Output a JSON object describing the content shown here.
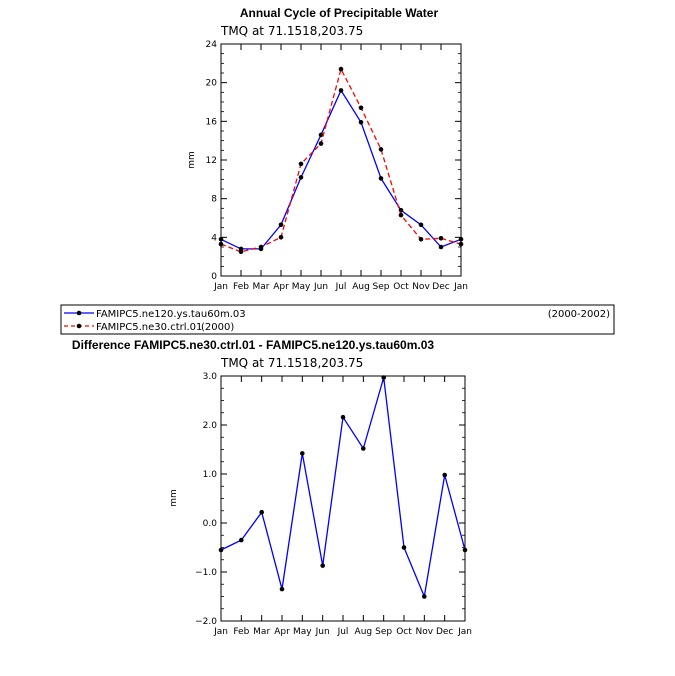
{
  "chart_data": [
    {
      "type": "line",
      "title": "Annual Cycle of Precipitable Water",
      "subtitle": "TMQ at 71.1518,203.75",
      "ylabel": "mm",
      "ylim": [
        0,
        24
      ],
      "yticks": [
        "0",
        "4",
        "8",
        "12",
        "16",
        "20",
        "24"
      ],
      "categories": [
        "Jan",
        "Feb",
        "Mar",
        "Apr",
        "May",
        "Jun",
        "Jul",
        "Aug",
        "Sep",
        "Oct",
        "Nov",
        "Dec",
        "Jan"
      ],
      "series": [
        {
          "name": "FAMIPC5.ne120.ys.tau60m.03",
          "color": "#0000ff",
          "dash": "none",
          "values": [
            3.8,
            2.8,
            2.8,
            5.3,
            10.2,
            14.6,
            19.2,
            15.9,
            10.1,
            6.8,
            5.3,
            3.0,
            3.8
          ]
        },
        {
          "name": "FAMIPC5.ne30.ctrl.01",
          "color": "#ff0000",
          "dash": "dashed",
          "values": [
            3.3,
            2.5,
            3.0,
            4.0,
            11.6,
            13.7,
            21.4,
            17.4,
            13.1,
            6.3,
            3.8,
            3.9,
            3.3
          ]
        }
      ],
      "legend": [
        {
          "label": "FAMIPC5.ne120.ys.tau60m.03",
          "years": "(2000-2002)"
        },
        {
          "label": "FAMIPC5.ne30.ctrl.01",
          "years": "(2000)"
        }
      ]
    },
    {
      "type": "line",
      "title": "Difference FAMIPC5.ne30.ctrl.01 - FAMIPC5.ne120.ys.tau60m.03",
      "subtitle": "TMQ at 71.1518,203.75",
      "ylabel": "mm",
      "ylim": [
        -2.0,
        3.0
      ],
      "yticks": [
        "−2.0",
        "−1.0",
        "0.0",
        "1.0",
        "2.0",
        "3.0"
      ],
      "categories": [
        "Jan",
        "Feb",
        "Mar",
        "Apr",
        "May",
        "Jun",
        "Jul",
        "Aug",
        "Sep",
        "Oct",
        "Nov",
        "Dec",
        "Jan"
      ],
      "series": [
        {
          "color": "#0000ff",
          "dash": "none",
          "values": [
            -0.55,
            -0.35,
            0.22,
            -1.35,
            1.42,
            -0.87,
            2.16,
            1.52,
            2.97,
            -0.5,
            -1.5,
            0.98,
            -0.55
          ]
        }
      ]
    }
  ]
}
